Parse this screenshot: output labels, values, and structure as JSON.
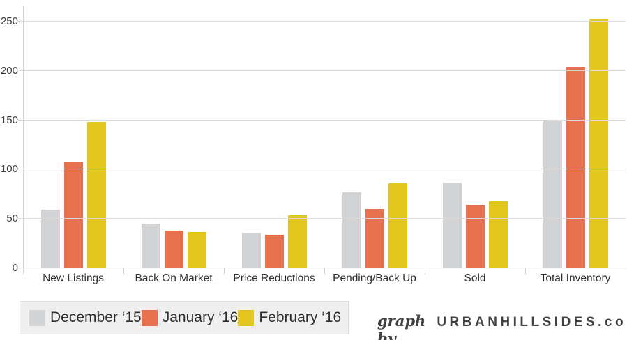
{
  "chart_data": {
    "type": "bar",
    "title": "",
    "xlabel": "",
    "ylabel": "",
    "categories": [
      "New Listings",
      "Back On Market",
      "Price Reductions",
      "Pending/Back Up",
      "Sold",
      "Total Inventory"
    ],
    "series": [
      {
        "name": "December ‘15",
        "color": "#d1d3d5",
        "values": [
          59,
          45,
          36,
          77,
          87,
          150
        ]
      },
      {
        "name": "January ‘16",
        "color": "#e7704e",
        "values": [
          108,
          38,
          34,
          60,
          64,
          204
        ]
      },
      {
        "name": "February ‘16",
        "color": "#e3c71e",
        "values": [
          148,
          37,
          54,
          86,
          68,
          253
        ]
      }
    ],
    "ylim": [
      0,
      250
    ],
    "yticks": [
      0,
      50,
      100,
      150,
      200,
      250
    ],
    "grid": true,
    "gridline_color": "#dadada",
    "legend_position": "bottom-left"
  },
  "footer": {
    "credit_prefix": "graph by",
    "brand": "URBANHILLSIDES.com"
  }
}
